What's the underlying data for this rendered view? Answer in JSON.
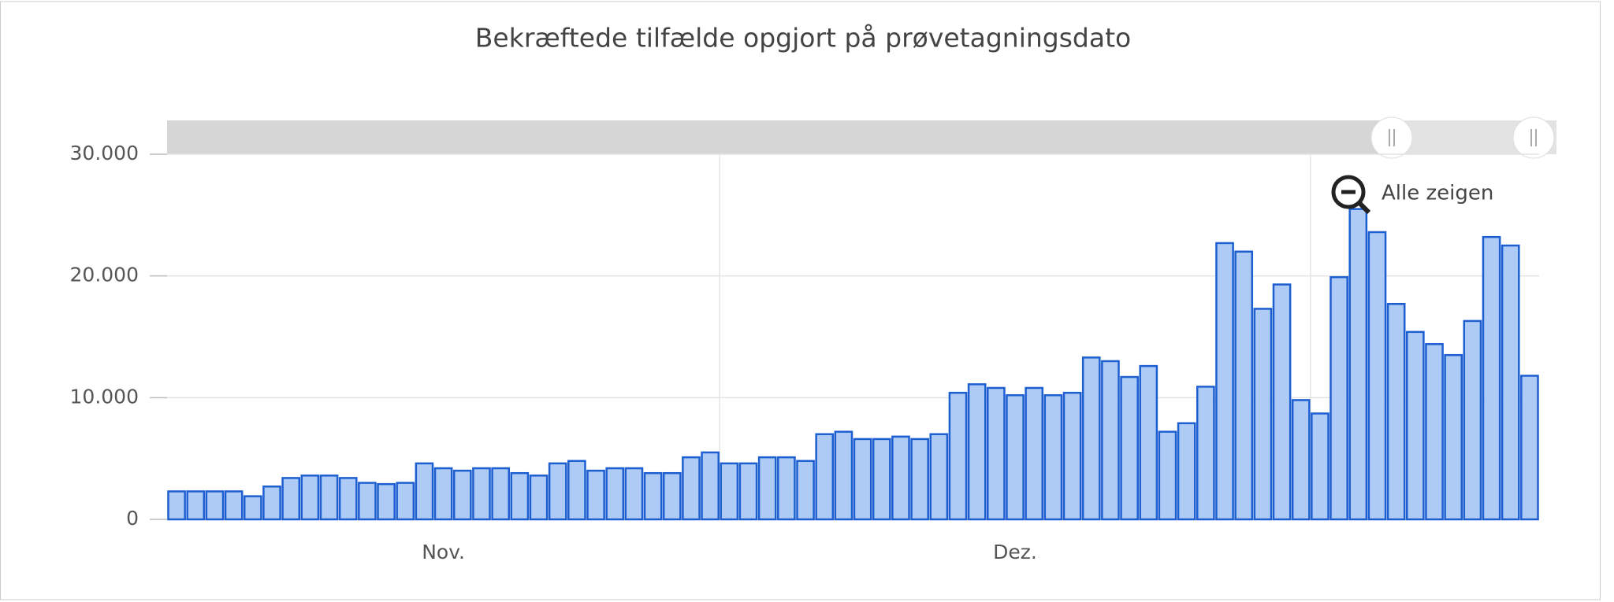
{
  "chart_data": {
    "type": "bar",
    "title": "Bekræftede tilfælde opgjort på prøvetagningsdato",
    "categories": [
      null,
      null,
      null,
      null,
      null,
      null,
      null,
      null,
      null,
      null,
      null,
      null,
      null,
      null,
      "Nov.",
      null,
      null,
      null,
      null,
      null,
      null,
      null,
      null,
      null,
      null,
      null,
      null,
      null,
      null,
      null,
      null,
      null,
      null,
      null,
      null,
      null,
      null,
      null,
      null,
      null,
      null,
      null,
      null,
      null,
      "Dez.",
      null,
      null,
      null,
      null,
      null,
      null,
      null,
      null,
      null,
      null,
      null,
      null,
      null,
      null,
      null,
      null,
      null,
      null,
      null,
      null,
      null,
      null,
      null,
      null,
      null,
      null,
      null
    ],
    "values": [
      2300,
      2300,
      2300,
      2300,
      1900,
      2700,
      3400,
      3600,
      3600,
      3400,
      3000,
      2900,
      3000,
      4600,
      4200,
      4000,
      4200,
      4200,
      3800,
      3600,
      4600,
      4800,
      4000,
      4200,
      4200,
      3800,
      3800,
      5100,
      5500,
      4600,
      4600,
      5100,
      5100,
      4800,
      7000,
      7200,
      6600,
      6600,
      6800,
      6600,
      7000,
      10400,
      11100,
      10800,
      10200,
      10800,
      10200,
      10400,
      13300,
      13000,
      11700,
      12600,
      7200,
      7900,
      10900,
      22700,
      22000,
      17300,
      19300,
      9800,
      8700,
      19900,
      25500,
      23600,
      17700,
      15400,
      14400,
      13500,
      16300,
      23200,
      22500,
      11800
    ],
    "color": "#aecbf5",
    "edge_color": "#1d5fd1",
    "ylim": [
      0,
      30000
    ],
    "yticks": [
      0,
      {
        "value": 10000,
        "label": "10.000"
      },
      {
        "value": 20000,
        "label": "20.000"
      },
      {
        "value": 30000,
        "label": "30.000"
      }
    ],
    "grid": true,
    "reset_button": "Alle zeigen"
  }
}
